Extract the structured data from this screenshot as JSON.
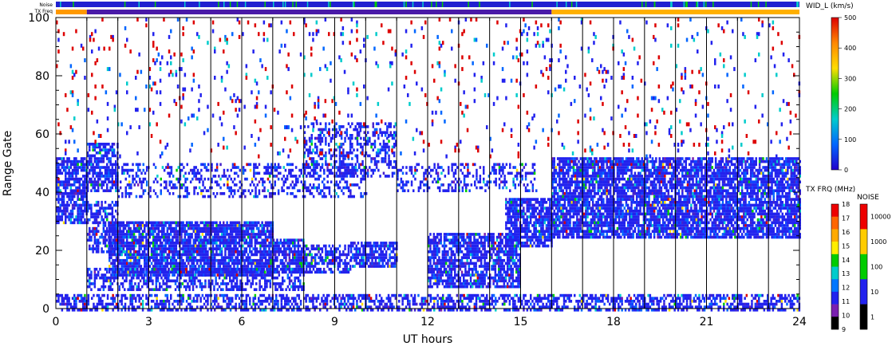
{
  "chart_data": {
    "type": "heatmap",
    "xlabel": "UT hours",
    "ylabel": "Range Gate",
    "x_ticks": [
      0,
      3,
      6,
      9,
      12,
      15,
      18,
      21,
      24
    ],
    "y_ticks": [
      0,
      20,
      40,
      60,
      80,
      100
    ],
    "xlim": [
      0,
      24
    ],
    "ylim": [
      0,
      100
    ],
    "hour_lines": [
      1,
      2,
      3,
      4,
      5,
      6,
      7,
      8,
      9,
      10,
      11,
      12,
      13,
      14,
      15,
      16,
      17,
      18,
      19,
      20,
      21,
      22,
      23
    ],
    "top_bars": {
      "noise_label": "Noise",
      "txfreq_label": "TX Freq",
      "noise_color": "#2020d0",
      "txfreq_segments": [
        {
          "from": 0,
          "to": 1,
          "color": "#ff9900"
        },
        {
          "from": 1,
          "to": 16,
          "color": "#4a1aa8"
        },
        {
          "from": 16,
          "to": 24,
          "color": "#ffb000"
        }
      ]
    },
    "colorbars": [
      {
        "title": "WID_L (km/s)",
        "ticks": [
          "500",
          "400",
          "300",
          "200",
          "100",
          "0"
        ],
        "stops": [
          "#dd0000",
          "#ff8800",
          "#ffdd00",
          "#00cc00",
          "#00cccc",
          "#0066ff",
          "#2200cc"
        ]
      },
      {
        "title": "TX FRQ (MHz)",
        "ticks": [
          "18",
          "17",
          "16",
          "15",
          "14",
          "13",
          "12",
          "11",
          "10",
          "9"
        ],
        "colors": [
          "#ee0000",
          "#ff6600",
          "#ffaa00",
          "#ffee00",
          "#00cc00",
          "#00cccc",
          "#0077ff",
          "#2222ee",
          "#7a20b0",
          "#000000"
        ]
      },
      {
        "title": "NOISE",
        "ticks": [
          "10000",
          "1000",
          "100",
          "10",
          "1"
        ],
        "colors": [
          "#ee0000",
          "#ffcc00",
          "#00cc00",
          "#2222ee",
          "#000000"
        ]
      }
    ],
    "scatter_regions": [
      {
        "x": [
          0,
          1
        ],
        "y": [
          30,
          52
        ],
        "density": 0.75
      },
      {
        "x": [
          1,
          2
        ],
        "y": [
          40,
          57
        ],
        "density": 0.7
      },
      {
        "x": [
          1,
          2
        ],
        "y": [
          20,
          37
        ],
        "density": 0.6
      },
      {
        "x": [
          1.7,
          7
        ],
        "y": [
          12,
          30
        ],
        "density": 0.85
      },
      {
        "x": [
          7,
          8
        ],
        "y": [
          13,
          24
        ],
        "density": 0.75
      },
      {
        "x": [
          1,
          8
        ],
        "y": [
          7,
          14
        ],
        "density": 0.5
      },
      {
        "x": [
          2,
          10
        ],
        "y": [
          38,
          50
        ],
        "density": 0.35
      },
      {
        "x": [
          8,
          11
        ],
        "y": [
          45,
          64
        ],
        "density": 0.4
      },
      {
        "x": [
          8,
          9.5
        ],
        "y": [
          13,
          22
        ],
        "density": 0.6
      },
      {
        "x": [
          9.5,
          11
        ],
        "y": [
          15,
          23
        ],
        "density": 0.75
      },
      {
        "x": [
          11,
          15.5
        ],
        "y": [
          40,
          50
        ],
        "density": 0.35
      },
      {
        "x": [
          12,
          15
        ],
        "y": [
          8,
          26
        ],
        "density": 0.75
      },
      {
        "x": [
          14.5,
          16
        ],
        "y": [
          22,
          38
        ],
        "density": 0.8
      },
      {
        "x": [
          16,
          24
        ],
        "y": [
          25,
          52
        ],
        "density": 0.8
      },
      {
        "x": [
          0,
          24
        ],
        "y": [
          0,
          5
        ],
        "density": 0.55
      },
      {
        "x": [
          0,
          24
        ],
        "y": [
          52,
          100
        ],
        "density": 0.04
      }
    ]
  }
}
